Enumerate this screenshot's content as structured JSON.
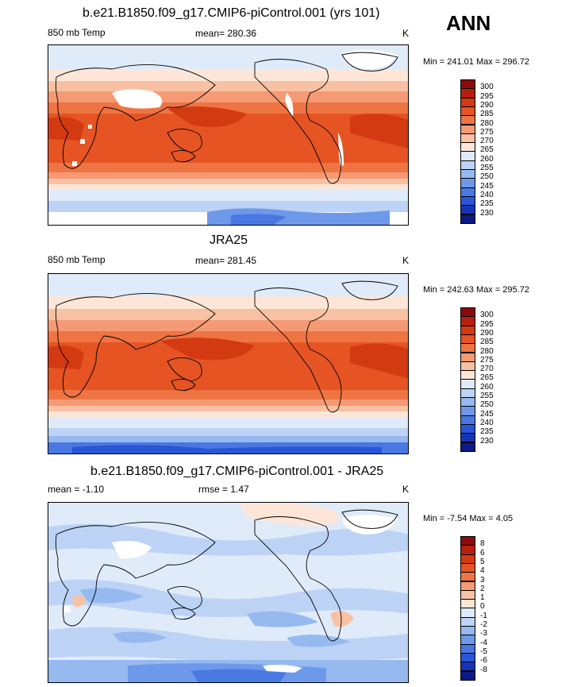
{
  "season": "ANN",
  "panels": [
    {
      "title": "b.e21.B1850.f09_g17.CMIP6-piControl.001 (yrs 101)",
      "left_label": "850 mb Temp",
      "center_label": "mean= 280.36",
      "units": "K",
      "minmax": "Min = 241.01 Max = 296.72"
    },
    {
      "title": "JRA25",
      "left_label": "850 mb Temp",
      "center_label": "mean= 281.45",
      "units": "K",
      "minmax": "Min = 242.63 Max = 295.72"
    },
    {
      "title": "b.e21.B1850.f09_g17.CMIP6-piControl.001 - JRA25",
      "left_label": "mean =  -1.10",
      "center_label": "rmse =   1.47",
      "units": "K",
      "minmax": "Min =  -7.54 Max =   4.05"
    }
  ],
  "chart_data": [
    {
      "type": "heatmap",
      "title": "b.e21.B1850.f09_g17.CMIP6-piControl.001 (yrs 101)",
      "variable": "850 mb Temp",
      "units": "K",
      "mean": 280.36,
      "min": 241.01,
      "max": 296.72,
      "colorbar_levels": [
        "300",
        "295",
        "290",
        "285",
        "280",
        "275",
        "270",
        "265",
        "260",
        "255",
        "250",
        "245",
        "240",
        "235",
        "230"
      ],
      "colorbar_colors": [
        "#8b0b0b",
        "#b51f0c",
        "#d33a12",
        "#e55422",
        "#ef7443",
        "#f59a74",
        "#f9c1a3",
        "#fde6d8",
        "#e0ebfa",
        "#bcd3f6",
        "#96b9f0",
        "#6e99ea",
        "#4a78e2",
        "#2a55d6",
        "#1434b8",
        "#0b1a86"
      ],
      "land_missing_color": "#ffffff"
    },
    {
      "type": "heatmap",
      "title": "JRA25",
      "variable": "850 mb Temp",
      "units": "K",
      "mean": 281.45,
      "min": 242.63,
      "max": 295.72,
      "colorbar_levels": [
        "300",
        "295",
        "290",
        "285",
        "280",
        "275",
        "270",
        "265",
        "260",
        "255",
        "250",
        "245",
        "240",
        "235",
        "230"
      ],
      "colorbar_colors": [
        "#8b0b0b",
        "#b51f0c",
        "#d33a12",
        "#e55422",
        "#ef7443",
        "#f59a74",
        "#f9c1a3",
        "#fde6d8",
        "#e0ebfa",
        "#bcd3f6",
        "#96b9f0",
        "#6e99ea",
        "#4a78e2",
        "#2a55d6",
        "#1434b8",
        "#0b1a86"
      ]
    },
    {
      "type": "heatmap",
      "title": "b.e21.B1850.f09_g17.CMIP6-piControl.001 - JRA25",
      "units": "K",
      "mean": -1.1,
      "rmse": 1.47,
      "min": -7.54,
      "max": 4.05,
      "colorbar_levels": [
        "8",
        "6",
        "5",
        "4",
        "3",
        "2",
        "1",
        "0",
        "-1",
        "-2",
        "-3",
        "-4",
        "-5",
        "-6",
        "-8"
      ],
      "colorbar_colors": [
        "#8b0b0b",
        "#b51f0c",
        "#d33a12",
        "#e55422",
        "#ef7443",
        "#f59a74",
        "#f9c1a3",
        "#fde6d8",
        "#e0ebfa",
        "#bcd3f6",
        "#96b9f0",
        "#6e99ea",
        "#4a78e2",
        "#2a55d6",
        "#1434b8",
        "#0b1a86"
      ]
    }
  ]
}
